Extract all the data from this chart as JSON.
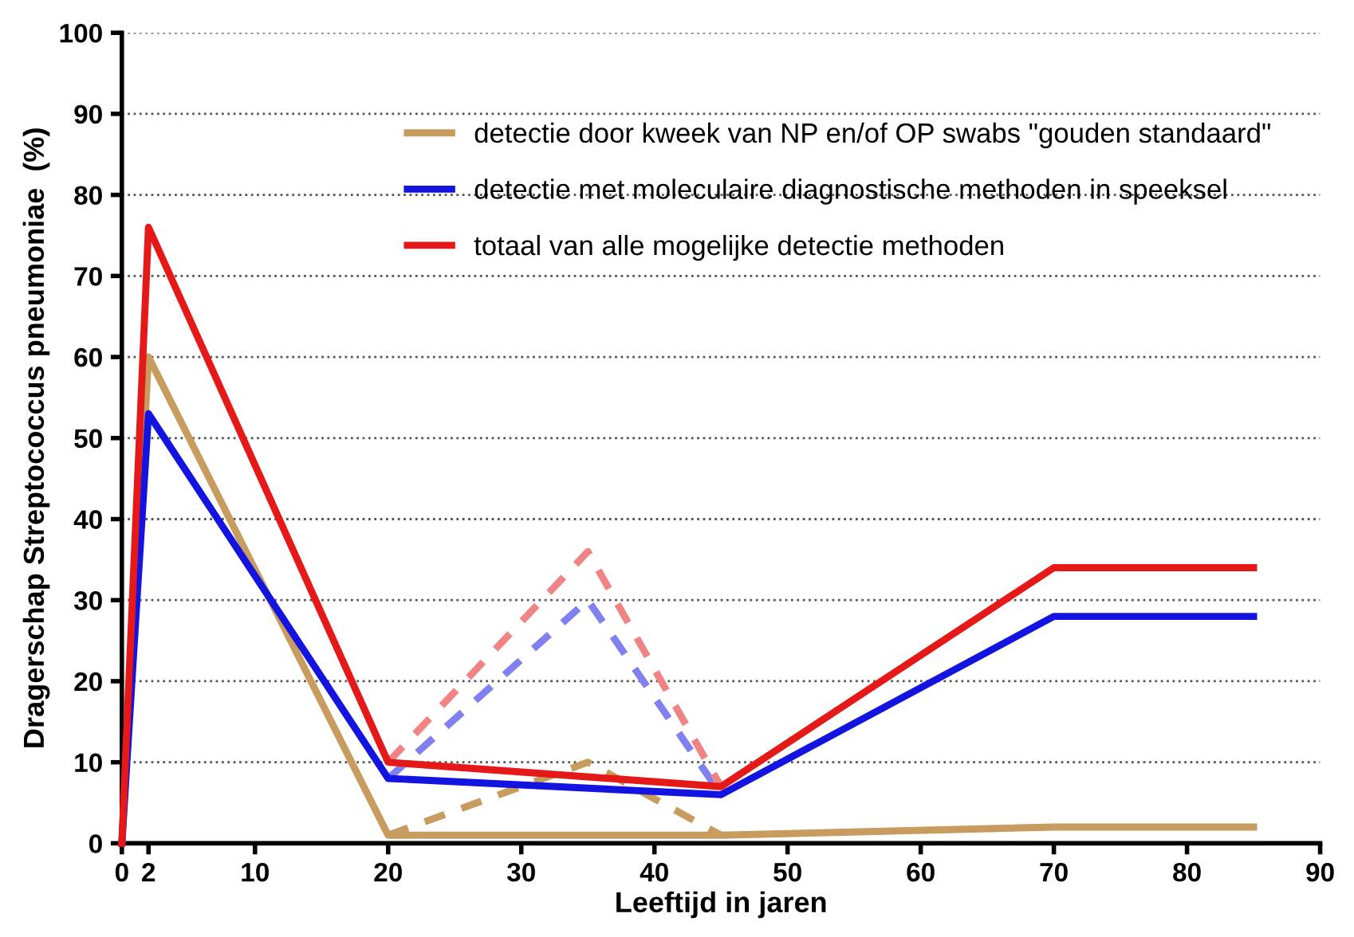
{
  "chart_data": {
    "type": "line",
    "xlabel": "Leeftijd in jaren",
    "ylabel": "Dragerschap Streptococcus pneumoniae  (%)",
    "xlim": [
      0,
      90
    ],
    "xticks": [
      0,
      2,
      10,
      20,
      30,
      40,
      50,
      60,
      70,
      80,
      90
    ],
    "ylim": [
      0,
      100
    ],
    "yticks": [
      0,
      10,
      20,
      30,
      40,
      50,
      60,
      70,
      80,
      90,
      100
    ],
    "grid": "y",
    "legend": "top right",
    "marker": "none",
    "series": [
      {
        "name": "detectie door kweek van NP en/of OP swabs \"gouden standaard\"",
        "color": "#c89b5f",
        "x": [
          0,
          2,
          20,
          45,
          70,
          85
        ],
        "values": [
          0,
          60,
          1,
          1,
          2,
          2
        ],
        "line_style": "solid"
      },
      {
        "name": "detectie met moleculaire diagnostische methoden in speeksel",
        "color": "#1414e0",
        "x": [
          0,
          2,
          20,
          45,
          70,
          85
        ],
        "values": [
          0,
          53,
          8,
          6,
          28,
          28
        ],
        "line_style": "solid"
      },
      {
        "name": "totaal van alle mogelijke detectie methoden",
        "color": "#e61919",
        "x": [
          0,
          2,
          20,
          45,
          70,
          85
        ],
        "values": [
          0,
          76,
          10,
          7,
          34,
          34
        ],
        "line_style": "solid"
      },
      {
        "color": "#c89b5f",
        "x": [
          20,
          35,
          45
        ],
        "values": [
          1,
          10,
          1
        ],
        "line_style": "dashed"
      },
      {
        "color": "#8080f0",
        "x": [
          20,
          35,
          45
        ],
        "values": [
          8,
          30,
          6
        ],
        "line_style": "dashed"
      },
      {
        "color": "#f08484",
        "x": [
          20,
          35,
          45
        ],
        "values": [
          10,
          36,
          7
        ],
        "line_style": "dashed"
      }
    ]
  }
}
